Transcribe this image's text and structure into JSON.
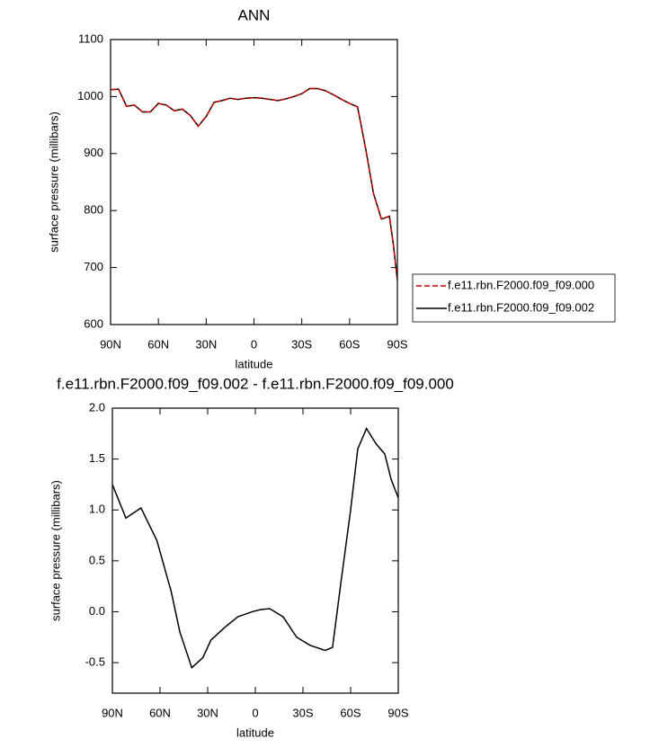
{
  "chart_data": [
    {
      "type": "line",
      "title": "ANN",
      "xlabel": "latitude",
      "ylabel": "surface pressure (millibars)",
      "xlim": [
        90,
        -90
      ],
      "ylim": [
        600,
        1100
      ],
      "xticks": [
        {
          "value": 90,
          "label": "90N"
        },
        {
          "value": 60,
          "label": "60N"
        },
        {
          "value": 30,
          "label": "30N"
        },
        0,
        {
          "value": -30,
          "label": "30S"
        },
        {
          "value": -60,
          "label": "60S"
        },
        {
          "value": -90,
          "label": "90S"
        }
      ],
      "yticks": [
        600,
        700,
        800,
        900,
        1000,
        1100
      ],
      "legend": "right",
      "x": [
        90,
        85,
        80,
        75,
        70,
        65,
        60,
        55,
        50,
        45,
        40,
        35,
        30,
        25,
        20,
        15,
        10,
        5,
        0,
        -5,
        -10,
        -15,
        -20,
        -25,
        -30,
        -35,
        -40,
        -45,
        -50,
        -55,
        -60,
        -65,
        -70,
        -75,
        -80,
        -85,
        -87.5,
        -90
      ],
      "series": [
        {
          "name": "f.e11.rbn.F2000.f09_f09.000",
          "color": "#cc0000",
          "dash": "dashed",
          "values": [
            1012,
            1013,
            983,
            985,
            973,
            973,
            988,
            985,
            975,
            978,
            967,
            948,
            965,
            990,
            993,
            997,
            995,
            997,
            998,
            997,
            995,
            993,
            996,
            1000,
            1005,
            1014,
            1014,
            1010,
            1003,
            995,
            988,
            982,
            910,
            830,
            785,
            790,
            740,
            678
          ]
        },
        {
          "name": "f.e11.rbn.F2000.f09_f09.002",
          "color": "#000000",
          "dash": "solid",
          "values": [
            1012,
            1013,
            983,
            985,
            973,
            973,
            988,
            985,
            975,
            978,
            967,
            948,
            965,
            990,
            993,
            997,
            995,
            997,
            998,
            997,
            995,
            993,
            996,
            1000,
            1005,
            1014,
            1014,
            1010,
            1003,
            995,
            988,
            982,
            910,
            830,
            785,
            790,
            740,
            678
          ]
        }
      ]
    },
    {
      "type": "line",
      "title": "f.e11.rbn.F2000.f09_f09.002 - f.e11.rbn.F2000.f09_f09.000",
      "xlabel": "latitude",
      "ylabel": "surface pressure (millibars)",
      "xlim": [
        90,
        -90
      ],
      "ylim": [
        -0.8,
        2.0
      ],
      "xticks": [
        {
          "value": 90,
          "label": "90N"
        },
        {
          "value": 60,
          "label": "60N"
        },
        {
          "value": 30,
          "label": "30N"
        },
        0,
        {
          "value": -30,
          "label": "30S"
        },
        {
          "value": -60,
          "label": "60S"
        },
        {
          "value": -90,
          "label": "90S"
        }
      ],
      "yticks": [
        -0.5,
        {
          "value": 0,
          "label": "0.0"
        },
        0.5,
        {
          "value": 1,
          "label": "1.0"
        },
        1.5,
        {
          "value": 2,
          "label": "2.0"
        }
      ],
      "x": [
        90,
        81.5,
        72,
        62,
        53,
        47.5,
        40,
        33,
        28,
        19,
        11,
        2,
        -3,
        -9,
        -17.5,
        -26,
        -34.5,
        -44,
        -48.6,
        -54,
        -60,
        -64.5,
        -70,
        -76,
        -81.5,
        -85.5,
        -90
      ],
      "color": "#000000",
      "values": [
        1.25,
        0.92,
        1.02,
        0.7,
        0.2,
        -0.2,
        -0.55,
        -0.45,
        -0.28,
        -0.15,
        -0.05,
        0.0,
        0.02,
        0.03,
        -0.05,
        -0.25,
        -0.33,
        -0.38,
        -0.35,
        0.3,
        1.0,
        1.6,
        1.8,
        1.65,
        1.55,
        1.3,
        1.12
      ]
    }
  ]
}
